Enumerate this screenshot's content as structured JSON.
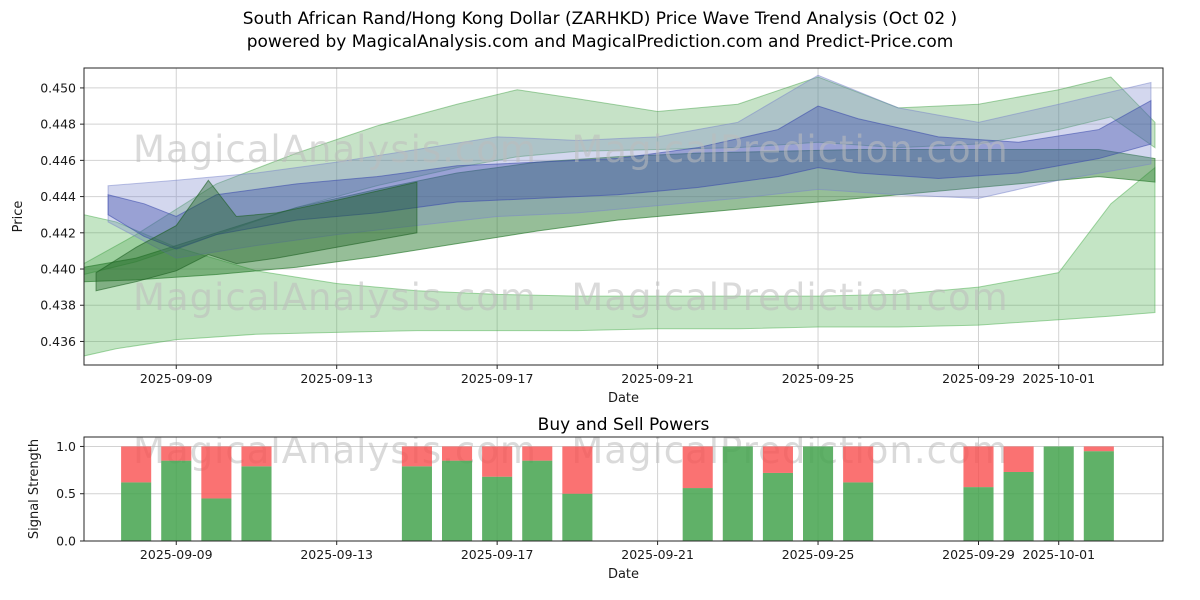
{
  "title": {
    "line1": "South African Rand/Hong Kong Dollar (ZARHKD) Price Wave Trend Analysis (Oct 02 )",
    "line2": "powered by MagicalAnalysis.com and MagicalPrediction.com and Predict-Price.com"
  },
  "watermarks": {
    "left": "MagicalAnalysis.com",
    "right": "MagicalPrediction.com"
  },
  "colors": {
    "background": "#ffffff",
    "grid": "#d2d2d2",
    "spine": "#262626",
    "text": "#1a1a1a",
    "watermark": "#bdbdbd"
  },
  "chart_data": [
    {
      "name": "price_wave_trend",
      "type": "area",
      "title": "",
      "xlabel": "Date",
      "ylabel": "Price",
      "x_base": "2025-09-06",
      "x_unit": "days since x_base",
      "xlim": [
        0.7,
        27.6
      ],
      "ylim": [
        0.4347,
        0.4511
      ],
      "yticks": [
        0.436,
        0.438,
        0.44,
        0.442,
        0.444,
        0.446,
        0.448,
        0.45
      ],
      "ytick_decimals": 3,
      "xticks": [
        "2025-09-09",
        "2025-09-13",
        "2025-09-17",
        "2025-09-21",
        "2025-09-25",
        "2025-09-29",
        "2025-10-01"
      ],
      "grid": true,
      "legend": "none",
      "bands": [
        {
          "name": "lower-envelope",
          "color": "#4caf50",
          "alpha": 0.33,
          "x": [
            0.7,
            1.5,
            3,
            5,
            7,
            9,
            11,
            13,
            15,
            17,
            19,
            21,
            23,
            25,
            26.3,
            27.4
          ],
          "lower": [
            0.4352,
            0.4356,
            0.4361,
            0.4364,
            0.4365,
            0.4366,
            0.4366,
            0.4366,
            0.4367,
            0.4367,
            0.4368,
            0.4368,
            0.4369,
            0.4372,
            0.4374,
            0.4376
          ],
          "upper": [
            0.443,
            0.4426,
            0.4412,
            0.4399,
            0.4392,
            0.4388,
            0.4386,
            0.4385,
            0.4385,
            0.4385,
            0.4385,
            0.4386,
            0.439,
            0.4398,
            0.4436,
            0.4456
          ]
        },
        {
          "name": "upper-green-fan",
          "color": "#43a047",
          "alpha": 0.3,
          "x": [
            0.7,
            2,
            4,
            6,
            8,
            10,
            11.5,
            13,
            15,
            17,
            19,
            21,
            23,
            25,
            26.3,
            27.4
          ],
          "lower": [
            0.4397,
            0.4404,
            0.4419,
            0.4434,
            0.4446,
            0.4456,
            0.4462,
            0.4465,
            0.4466,
            0.4467,
            0.447,
            0.4467,
            0.4469,
            0.4477,
            0.4484,
            0.4467
          ],
          "upper": [
            0.4403,
            0.4419,
            0.4447,
            0.4464,
            0.4479,
            0.4491,
            0.4499,
            0.4494,
            0.4487,
            0.4491,
            0.4506,
            0.4489,
            0.4491,
            0.4499,
            0.4506,
            0.4481
          ]
        },
        {
          "name": "main-green-trend",
          "color": "#2e7d32",
          "alpha": 0.5,
          "x": [
            0.7,
            2,
            4,
            6,
            8,
            10,
            12,
            14,
            16,
            18,
            20,
            22,
            24,
            26,
            27.4
          ],
          "lower": [
            0.4393,
            0.4394,
            0.4397,
            0.4401,
            0.4407,
            0.4414,
            0.4421,
            0.4427,
            0.4431,
            0.4435,
            0.4439,
            0.4443,
            0.4447,
            0.4451,
            0.4448
          ],
          "upper": [
            0.4401,
            0.4406,
            0.442,
            0.4434,
            0.4444,
            0.4453,
            0.4459,
            0.4462,
            0.4464,
            0.4465,
            0.4466,
            0.4466,
            0.4466,
            0.4466,
            0.4461
          ]
        },
        {
          "name": "blue-fan",
          "color": "#7986cb",
          "alpha": 0.33,
          "x": [
            1.3,
            3,
            5,
            7,
            9,
            11,
            13,
            15,
            17,
            19,
            21,
            23,
            25,
            27.3
          ],
          "lower": [
            0.4426,
            0.4406,
            0.4413,
            0.4419,
            0.4424,
            0.4429,
            0.4431,
            0.4435,
            0.4439,
            0.4444,
            0.4441,
            0.4439,
            0.4449,
            0.4458
          ],
          "upper": [
            0.4446,
            0.4449,
            0.4453,
            0.4459,
            0.4466,
            0.4473,
            0.4471,
            0.4473,
            0.4481,
            0.4507,
            0.4489,
            0.4481,
            0.4491,
            0.4503
          ]
        },
        {
          "name": "blue-core",
          "color": "#3949ab",
          "alpha": 0.38,
          "x": [
            1.3,
            2.2,
            3,
            4,
            6,
            8,
            10,
            12,
            14,
            16,
            18,
            19,
            20,
            22,
            24,
            26,
            27.3
          ],
          "lower": [
            0.443,
            0.4418,
            0.4411,
            0.4419,
            0.4427,
            0.4431,
            0.4437,
            0.4439,
            0.4441,
            0.4445,
            0.4451,
            0.4456,
            0.4453,
            0.445,
            0.4453,
            0.4461,
            0.4469
          ],
          "upper": [
            0.4441,
            0.4436,
            0.4429,
            0.4441,
            0.4447,
            0.4451,
            0.4457,
            0.4459,
            0.4461,
            0.4467,
            0.4477,
            0.449,
            0.4483,
            0.4473,
            0.447,
            0.4477,
            0.4493
          ]
        },
        {
          "name": "dark-left-cluster",
          "color": "#1b5e20",
          "alpha": 0.4,
          "x": [
            1.0,
            2,
            3,
            3.8,
            4.5,
            5.5,
            7,
            9
          ],
          "lower": [
            0.4388,
            0.4393,
            0.4399,
            0.4408,
            0.4403,
            0.4406,
            0.4412,
            0.442
          ],
          "upper": [
            0.4398,
            0.4412,
            0.4424,
            0.4449,
            0.4429,
            0.4431,
            0.4438,
            0.4448
          ]
        }
      ]
    },
    {
      "name": "buy_sell_powers",
      "type": "bar",
      "title": "Buy and Sell Powers",
      "xlabel": "Date",
      "ylabel": "Signal Strength",
      "ylim": [
        0,
        1.1
      ],
      "yticks": [
        0.0,
        0.5,
        1.0
      ],
      "ytick_decimals": 1,
      "xticks": [
        "2025-09-09",
        "2025-09-13",
        "2025-09-17",
        "2025-09-21",
        "2025-09-25",
        "2025-09-29",
        "2025-10-01"
      ],
      "bar_width_days": 0.75,
      "series": [
        {
          "name": "buy",
          "color": "#44a34e"
        },
        {
          "name": "sell",
          "color": "#f94f4f"
        }
      ],
      "bars": [
        {
          "date": "2025-09-08",
          "buy": 0.62,
          "sell": 0.38
        },
        {
          "date": "2025-09-09",
          "buy": 0.85,
          "sell": 0.15
        },
        {
          "date": "2025-09-10",
          "buy": 0.45,
          "sell": 0.55
        },
        {
          "date": "2025-09-11",
          "buy": 0.79,
          "sell": 0.21
        },
        {
          "date": "2025-09-15",
          "buy": 0.79,
          "sell": 0.21
        },
        {
          "date": "2025-09-16",
          "buy": 0.85,
          "sell": 0.15
        },
        {
          "date": "2025-09-17",
          "buy": 0.68,
          "sell": 0.32
        },
        {
          "date": "2025-09-18",
          "buy": 0.85,
          "sell": 0.15
        },
        {
          "date": "2025-09-19",
          "buy": 0.5,
          "sell": 0.5
        },
        {
          "date": "2025-09-22",
          "buy": 0.56,
          "sell": 0.44
        },
        {
          "date": "2025-09-23",
          "buy": 1.0,
          "sell": 0.0
        },
        {
          "date": "2025-09-24",
          "buy": 0.72,
          "sell": 0.28
        },
        {
          "date": "2025-09-25",
          "buy": 1.0,
          "sell": 0.0
        },
        {
          "date": "2025-09-26",
          "buy": 0.62,
          "sell": 0.38
        },
        {
          "date": "2025-09-29",
          "buy": 0.57,
          "sell": 0.43
        },
        {
          "date": "2025-09-30",
          "buy": 0.73,
          "sell": 0.27
        },
        {
          "date": "2025-10-01",
          "buy": 1.0,
          "sell": 0.0
        },
        {
          "date": "2025-10-02",
          "buy": 0.95,
          "sell": 0.05
        }
      ]
    }
  ]
}
